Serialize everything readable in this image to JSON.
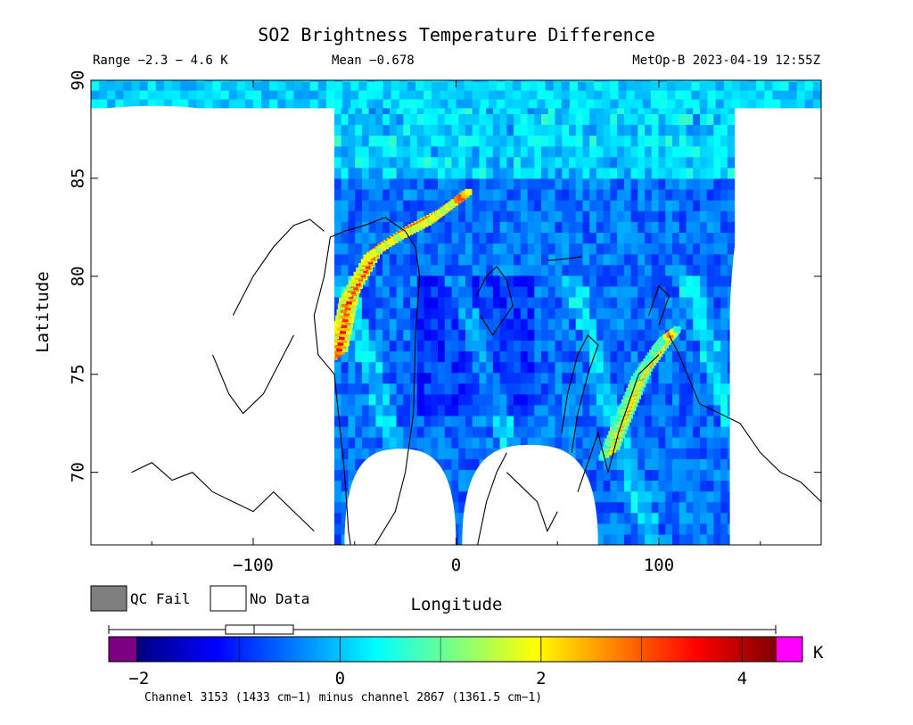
{
  "chart_data": {
    "type": "heatmap",
    "title": "SO2 Brightness Temperature Difference",
    "header": {
      "range": "Range −2.3 − 4.6 K",
      "mean": "Mean −0.678",
      "satellite": "MetOp-B 2023-04-19 12:55Z"
    },
    "xlabel": "Longitude",
    "ylabel": "Latitude",
    "xlim": [
      -180,
      180
    ],
    "ylim": [
      66.3,
      90
    ],
    "xticks": [
      -100,
      0,
      100
    ],
    "xtick_labels": [
      "−100",
      "0",
      "100"
    ],
    "yticks": [
      70,
      75,
      80,
      85,
      90
    ],
    "ytick_labels": [
      "70",
      "75",
      "80",
      "85",
      "90"
    ],
    "legend": [
      {
        "label": "QC Fail",
        "color": "#7f7f7f"
      },
      {
        "label": "No Data",
        "color": "#ffffff"
      }
    ],
    "colorbar": {
      "min": -2.3,
      "max": 4.6,
      "ticks": [
        -2,
        0,
        2,
        4
      ],
      "tick_labels": [
        "−2",
        "0",
        "2",
        "4"
      ],
      "unit": "K",
      "under_color": "#7b0080",
      "over_color": "#ff00ff",
      "colors": [
        "#00007f",
        "#0000ff",
        "#007fff",
        "#00ffff",
        "#7fff7f",
        "#ffff00",
        "#ff7f00",
        "#ff0000",
        "#7f0000"
      ]
    },
    "swath": {
      "lon_range": [
        -60,
        135
      ],
      "background_value": -0.7
    },
    "features": [
      {
        "name": "SO2 plume north Greenland",
        "points": [
          [
            -58,
            76
          ],
          [
            -52,
            79
          ],
          [
            -40,
            81.2
          ],
          [
            -25,
            82.2
          ],
          [
            -10,
            83.0
          ],
          [
            3,
            84.0
          ]
        ],
        "value": 3.5
      },
      {
        "name": "SO2 plume Novaya Zemlya",
        "points": [
          [
            76,
            71
          ],
          [
            84,
            73
          ],
          [
            92,
            75
          ],
          [
            102,
            76.5
          ],
          [
            106,
            77
          ]
        ],
        "value": 2.6
      }
    ],
    "footnote": "Channel 3153 (1433 cm−1) minus channel 2867 (1361.5 cm−1)"
  }
}
